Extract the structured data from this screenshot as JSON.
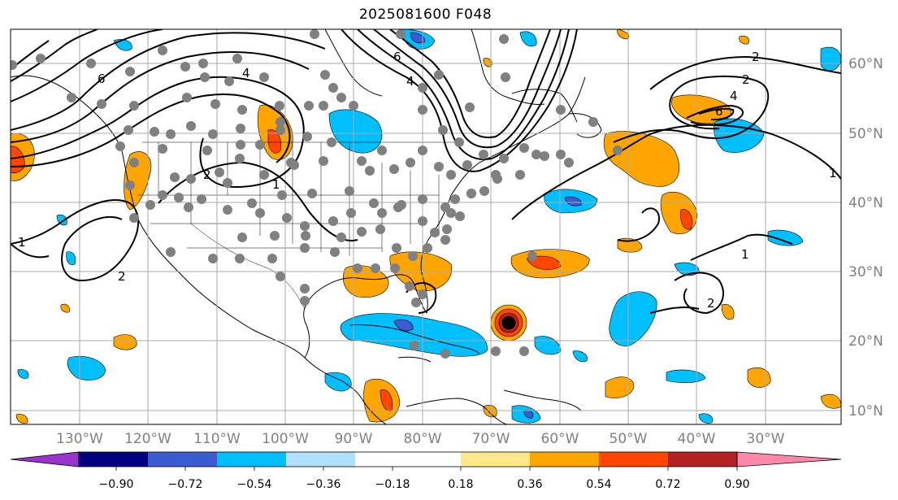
{
  "title": "2025081600 F048",
  "map": {
    "projection": "PlateCarree",
    "lon_range": [
      -140,
      -19
    ],
    "lat_range": [
      8,
      65
    ],
    "gridlines": true,
    "lon_ticks": [
      {
        "lon": -130,
        "label": "130°W"
      },
      {
        "lon": -120,
        "label": "120°W"
      },
      {
        "lon": -110,
        "label": "110°W"
      },
      {
        "lon": -100,
        "label": "100°W"
      },
      {
        "lon": -90,
        "label": "90°W"
      },
      {
        "lon": -80,
        "label": "80°W"
      },
      {
        "lon": -70,
        "label": "70°W"
      },
      {
        "lon": -60,
        "label": "60°W"
      },
      {
        "lon": -50,
        "label": "50°W"
      },
      {
        "lon": -40,
        "label": "40°W"
      },
      {
        "lon": -30,
        "label": "30°W"
      }
    ],
    "lat_ticks": [
      {
        "lat": 60,
        "label": "60°N"
      },
      {
        "lat": 50,
        "label": "50°N"
      },
      {
        "lat": 40,
        "label": "40°N"
      },
      {
        "lat": 30,
        "label": "30°N"
      },
      {
        "lat": 20,
        "label": "20°N"
      },
      {
        "lat": 10,
        "label": "10°N"
      }
    ],
    "station_color": "#808080",
    "hurricane_center": {
      "lon": -68,
      "lat": 22.5
    },
    "contour_labels": [
      "6",
      "4",
      "2",
      "1",
      "6",
      "4",
      "2",
      "1",
      "2",
      "1",
      "4",
      "6",
      "2",
      "1",
      "2"
    ]
  },
  "colorbar": {
    "ticks": [
      "−0.90",
      "−0.72",
      "−0.54",
      "−0.36",
      "−0.18",
      "0.18",
      "0.36",
      "0.54",
      "0.72",
      "0.90"
    ],
    "colors": [
      "#9933cc",
      "#000080",
      "#3b5bd1",
      "#00bfff",
      "#aee0ff",
      "#ffffff",
      "#ffe88a",
      "#ffa500",
      "#ff4500",
      "#b22222",
      "#ff88aa"
    ],
    "extend": "both"
  }
}
